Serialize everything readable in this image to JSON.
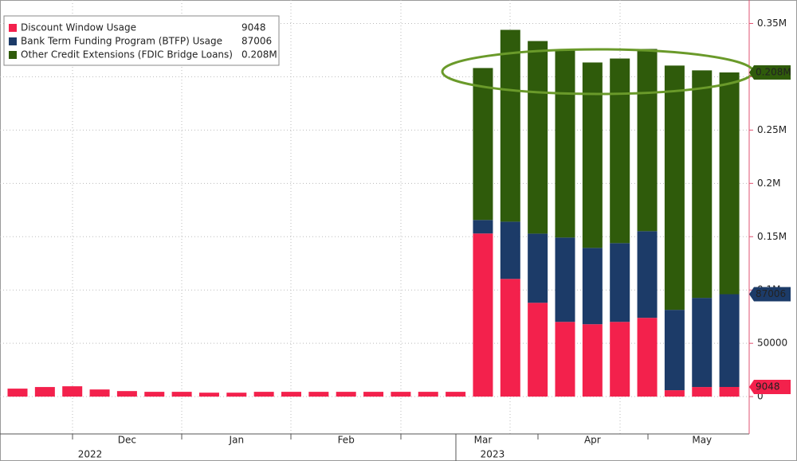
{
  "chart_data": {
    "type": "stacked_bar",
    "categories": [
      null,
      null,
      null,
      null,
      "Dec",
      null,
      null,
      null,
      "Jan",
      null,
      null,
      null,
      "Feb",
      null,
      null,
      null,
      null,
      "Mar",
      null,
      null,
      null,
      "Apr",
      null,
      null,
      null,
      "May",
      null
    ],
    "year_labels": [
      {
        "label": "2022",
        "category": 3
      },
      {
        "label": "2023",
        "category": 17
      }
    ],
    "series": [
      {
        "name": "Discount Window Usage",
        "color": "#f3214c",
        "values": [
          7500,
          9000,
          9700,
          6700,
          5200,
          4500,
          4500,
          3700,
          3700,
          4500,
          4500,
          4500,
          4500,
          4500,
          4500,
          4500,
          4500,
          153000,
          110400,
          88000,
          70100,
          67900,
          70100,
          73900,
          6000,
          9000,
          9048
        ]
      },
      {
        "name": "Bank Term Funding Program (BTFP) Usage",
        "color": "#1c3b68",
        "values": [
          null,
          null,
          null,
          null,
          null,
          null,
          null,
          null,
          null,
          null,
          null,
          null,
          null,
          null,
          null,
          null,
          null,
          12700,
          53700,
          64900,
          79100,
          71600,
          73900,
          81300,
          75400,
          83600,
          87006
        ]
      },
      {
        "name": "Other Credit Extensions (FDIC Bridge Loans)",
        "color": "#2f5b0b",
        "values": [
          null,
          null,
          null,
          null,
          null,
          null,
          null,
          null,
          null,
          null,
          null,
          null,
          null,
          null,
          null,
          null,
          null,
          142500,
          179900,
          180600,
          176100,
          173900,
          173100,
          170900,
          229100,
          213400,
          208000
        ],
        "value_labels": [
          null,
          null,
          null,
          null,
          null,
          null,
          null,
          null,
          null,
          null,
          null,
          null,
          null,
          null,
          null,
          null,
          null,
          null,
          null,
          null,
          null,
          null,
          null,
          null,
          null,
          null,
          "0.208M"
        ]
      }
    ],
    "ylim": [
      -35000,
      372000
    ],
    "yticks": [
      0,
      50000,
      {
        "value": 100000,
        "label": "0.1M"
      },
      {
        "value": 150000,
        "label": "0.15M"
      },
      {
        "value": 200000,
        "label": "0.2M"
      },
      {
        "value": 250000,
        "label": "0.25M"
      },
      {
        "value": 300000,
        "label": "0.3M"
      },
      {
        "value": 350000,
        "label": "0.35M"
      }
    ],
    "grid": true,
    "legend": "upper left"
  }
}
